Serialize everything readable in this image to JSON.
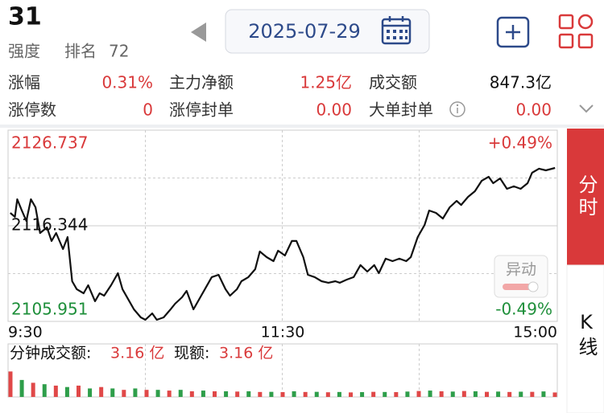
{
  "header": {
    "code": 31,
    "strength": "强度",
    "rank_label": "排名",
    "rank": 72,
    "date": "2025-07-29"
  },
  "stats": [
    [
      {
        "label": "涨幅",
        "value": "0.31%"
      },
      {
        "label": "主力净额",
        "value": "1.25亿"
      },
      {
        "label": "成交额",
        "value": "847.3亿"
      }
    ],
    [
      {
        "label": "涨停数",
        "value": "0"
      },
      {
        "label": "涨停封单",
        "value": "0.00"
      },
      {
        "label": "大单封单",
        "value": "0.00"
      }
    ]
  ],
  "tabs": [
    "分时",
    "K线"
  ],
  "alert_button": "异动",
  "volume_info": {
    "label": "分钟成交额:",
    "value": "3.16 亿",
    "current_label": "现额:",
    "current_value": "3.16 亿"
  },
  "chart_data": [
    {
      "type": "line",
      "x": [
        1,
        3,
        4,
        6,
        8,
        10,
        12,
        14,
        17,
        19,
        21,
        24,
        26,
        28,
        30,
        33,
        35,
        38,
        40,
        42,
        45,
        48,
        50,
        53,
        55,
        58,
        60,
        63,
        65,
        68,
        71,
        73,
        76,
        78,
        81,
        84,
        86,
        89,
        92,
        95,
        97,
        100,
        102,
        105,
        108,
        110,
        113,
        116,
        118,
        121,
        124,
        126,
        129,
        131,
        134,
        137,
        140,
        143,
        145,
        148,
        151,
        154,
        157,
        160,
        162,
        165,
        168,
        171,
        174,
        176,
        179,
        182,
        184,
        187,
        190,
        193,
        196,
        198,
        201,
        204,
        207,
        210,
        212,
        215,
        218,
        221,
        224,
        227,
        229,
        232,
        235,
        239
      ],
      "series": [
        {
          "color": "#111111",
          "values": [
            2117.74,
            2117.31,
            2119.23,
            2118.0,
            2116.87,
            2119.23,
            2118.35,
            2115.56,
            2116.17,
            2114.69,
            2115.56,
            2113.81,
            2115.12,
            2110.32,
            2109.45,
            2109.01,
            2109.88,
            2108.14,
            2109.01,
            2108.75,
            2109.88,
            2111.19,
            2109.45,
            2108.14,
            2107.26,
            2106.39,
            2106.13,
            2106.82,
            2106.13,
            2106.39,
            2107.26,
            2107.87,
            2108.57,
            2109.27,
            2107.26,
            2108.57,
            2109.45,
            2110.76,
            2111.02,
            2109.45,
            2108.75,
            2109.45,
            2110.32,
            2110.76,
            2111.63,
            2113.55,
            2112.94,
            2112.5,
            2113.64,
            2113.11,
            2114.69,
            2114.69,
            2112.94,
            2111.02,
            2110.76,
            2110.32,
            2110.15,
            2110.32,
            2110.15,
            2110.49,
            2110.76,
            2112.07,
            2111.37,
            2112.07,
            2111.19,
            2112.77,
            2112.5,
            2112.77,
            2112.5,
            2112.94,
            2115.12,
            2116.43,
            2118.0,
            2117.74,
            2117.13,
            2118.35,
            2119.05,
            2118.61,
            2119.49,
            2120.1,
            2121.24,
            2121.67,
            2120.97,
            2121.5,
            2120.36,
            2120.63,
            2120.36,
            2120.97,
            2122.11,
            2122.55,
            2122.37,
            2122.63
          ]
        }
      ],
      "xlim": [
        0,
        240
      ],
      "xticks": [
        {
          "value": 0,
          "label": "9:30"
        },
        {
          "value": 120,
          "label": "11:30"
        },
        {
          "value": 240,
          "label": "15:00"
        }
      ],
      "ylim": [
        2105.951,
        2126.737
      ],
      "yticks": [
        2105.951,
        2116.344,
        2126.737
      ],
      "y2lim": [
        -0.49,
        0.49
      ],
      "y2ticks": [
        {
          "value": -0.49,
          "label": "-0.49%"
        },
        {
          "value": 0.49,
          "label": "+0.49%"
        }
      ]
    },
    {
      "type": "bar",
      "xlim": [
        0,
        240
      ],
      "ylim": [
        0,
        25
      ],
      "series": [
        {
          "color": "#e04848",
          "x": [
            0,
            10,
            20,
            30,
            40,
            50,
            60,
            70,
            80,
            90,
            100,
            110,
            120,
            130,
            140,
            150,
            160,
            170,
            180,
            190,
            200,
            210,
            220,
            230,
            240
          ],
          "values": [
            18,
            10,
            8,
            8,
            7,
            5,
            5,
            4.5,
            4,
            4,
            3.8,
            3.5,
            3.4,
            3.5,
            3.3,
            3.2,
            3.6,
            3.4,
            4.2,
            4,
            4.2,
            3.6,
            3.5,
            3.6,
            3.16
          ]
        },
        {
          "color": "#2e9e4a",
          "x": [
            5,
            15,
            25,
            35,
            45,
            55,
            65,
            75,
            85,
            95,
            105,
            115,
            125,
            135,
            145,
            155,
            165,
            175,
            185,
            195,
            205,
            215,
            225,
            235
          ],
          "values": [
            12,
            9,
            7,
            6,
            6,
            6,
            5,
            5,
            4.5,
            4,
            4,
            3.6,
            4,
            3.6,
            3.5,
            3.4,
            3.5,
            3.8,
            4.5,
            3.8,
            4,
            3.8,
            3.7,
            3.9
          ]
        }
      ]
    }
  ]
}
